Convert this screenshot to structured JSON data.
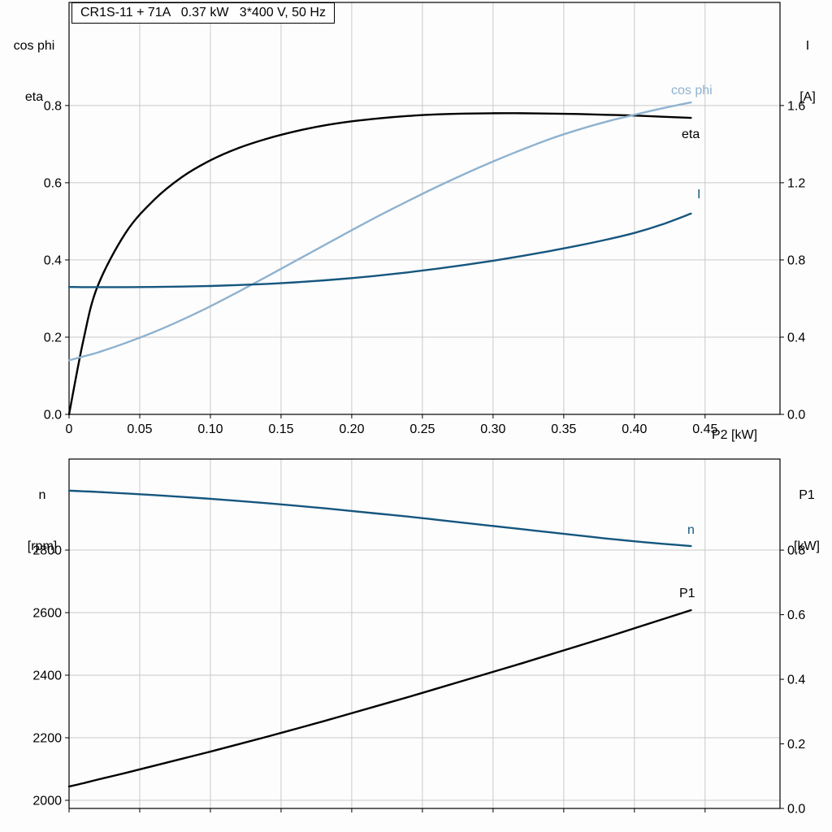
{
  "colors": {
    "black": "#000000",
    "light_blue": "#8fb2cf",
    "dark_blue": "#15567e",
    "grid": "#c9c9c9",
    "frame": "#000000"
  },
  "chart_data": [
    {
      "id": "motor-performance-chart",
      "type": "line",
      "title": "CR1S-11 + 71A   0.37 kW   3*400 V, 50 Hz",
      "x_axis": {
        "label": "P2 [kW]",
        "range": [
          0,
          0.503
        ],
        "ticks": [
          0,
          0.05,
          0.1,
          0.15,
          0.2,
          0.25,
          0.3,
          0.35,
          0.4,
          0.45
        ],
        "tick_labels": [
          "0",
          "0.05",
          "0.10",
          "0.15",
          "0.20",
          "0.25",
          "0.30",
          "0.35",
          "0.40",
          "0.45"
        ]
      },
      "left_axis": {
        "title_lines": [
          "cos phi",
          "eta"
        ],
        "range": [
          0,
          1.067
        ],
        "ticks": [
          0.0,
          0.2,
          0.4,
          0.6,
          0.8
        ],
        "tick_labels": [
          "0.0",
          "0.2",
          "0.4",
          "0.6",
          "0.8"
        ]
      },
      "right_axis": {
        "title_lines": [
          "I",
          "[A]"
        ],
        "range": [
          0,
          2.134
        ],
        "ticks": [
          0.0,
          0.4,
          0.8,
          1.2,
          1.6
        ],
        "tick_labels": [
          "0.0",
          "0.4",
          "0.8",
          "1.2",
          "1.6"
        ]
      },
      "x": [
        0,
        0.01,
        0.02,
        0.04,
        0.06,
        0.08,
        0.1,
        0.12,
        0.14,
        0.16,
        0.18,
        0.2,
        0.22,
        0.24,
        0.26,
        0.28,
        0.3,
        0.32,
        0.34,
        0.36,
        0.38,
        0.4,
        0.42,
        0.44
      ],
      "series": [
        {
          "name": "eta",
          "label": "eta",
          "axis": "left",
          "color": "#000000",
          "values": [
            0,
            0.19,
            0.33,
            0.47,
            0.555,
            0.615,
            0.658,
            0.69,
            0.714,
            0.733,
            0.748,
            0.759,
            0.767,
            0.773,
            0.777,
            0.779,
            0.78,
            0.78,
            0.779,
            0.778,
            0.776,
            0.774,
            0.771,
            0.768
          ]
        },
        {
          "name": "cos-phi",
          "label": "cos phi",
          "axis": "left",
          "color": "#8fb2cf",
          "values": [
            0.14,
            0.15,
            0.16,
            0.185,
            0.213,
            0.245,
            0.28,
            0.318,
            0.357,
            0.397,
            0.437,
            0.477,
            0.516,
            0.553,
            0.589,
            0.623,
            0.655,
            0.685,
            0.713,
            0.737,
            0.758,
            0.776,
            0.793,
            0.808
          ]
        },
        {
          "name": "current",
          "label": "I",
          "axis": "right",
          "color": "#15567e",
          "values": [
            0.66,
            0.659,
            0.659,
            0.659,
            0.66,
            0.662,
            0.665,
            0.67,
            0.676,
            0.684,
            0.694,
            0.706,
            0.72,
            0.736,
            0.754,
            0.774,
            0.796,
            0.82,
            0.846,
            0.874,
            0.905,
            0.94,
            0.985,
            1.04
          ]
        }
      ]
    },
    {
      "id": "speed-power-chart",
      "type": "line",
      "title": "",
      "x_axis": {
        "label": "",
        "range": [
          0,
          0.503
        ],
        "ticks": [
          0,
          0.05,
          0.1,
          0.15,
          0.2,
          0.25,
          0.3,
          0.35,
          0.4,
          0.45
        ],
        "tick_labels": []
      },
      "left_axis": {
        "title_lines": [
          "n",
          "[rpm]"
        ],
        "range": [
          1974,
          3091
        ],
        "ticks": [
          2000,
          2200,
          2400,
          2600,
          2800
        ],
        "tick_labels": [
          "2000",
          "2200",
          "2400",
          "2600",
          "2800"
        ]
      },
      "right_axis": {
        "title_lines": [
          "P1",
          "[kW]"
        ],
        "range": [
          0,
          1.082
        ],
        "ticks": [
          0.0,
          0.2,
          0.4,
          0.6,
          0.8
        ],
        "tick_labels": [
          "0.0",
          "0.2",
          "0.4",
          "0.6",
          "0.8"
        ]
      },
      "x": [
        0,
        0.01,
        0.02,
        0.04,
        0.06,
        0.08,
        0.1,
        0.12,
        0.14,
        0.16,
        0.18,
        0.2,
        0.22,
        0.24,
        0.26,
        0.28,
        0.3,
        0.32,
        0.34,
        0.36,
        0.38,
        0.4,
        0.42,
        0.44
      ],
      "series": [
        {
          "name": "speed",
          "label": "n",
          "axis": "left",
          "color": "#15567e",
          "values": [
            2990,
            2988,
            2986,
            2981,
            2976,
            2970,
            2964,
            2957,
            2950,
            2942,
            2934,
            2925,
            2916,
            2907,
            2897,
            2887,
            2877,
            2867,
            2857,
            2847,
            2837,
            2828,
            2820,
            2813
          ]
        },
        {
          "name": "p1",
          "label": "P1",
          "axis": "right",
          "color": "#000000",
          "values": [
            0.068,
            0.078,
            0.089,
            0.11,
            0.132,
            0.154,
            0.176,
            0.199,
            0.222,
            0.246,
            0.27,
            0.295,
            0.32,
            0.345,
            0.371,
            0.397,
            0.423,
            0.449,
            0.476,
            0.503,
            0.53,
            0.558,
            0.586,
            0.614
          ]
        }
      ]
    }
  ]
}
